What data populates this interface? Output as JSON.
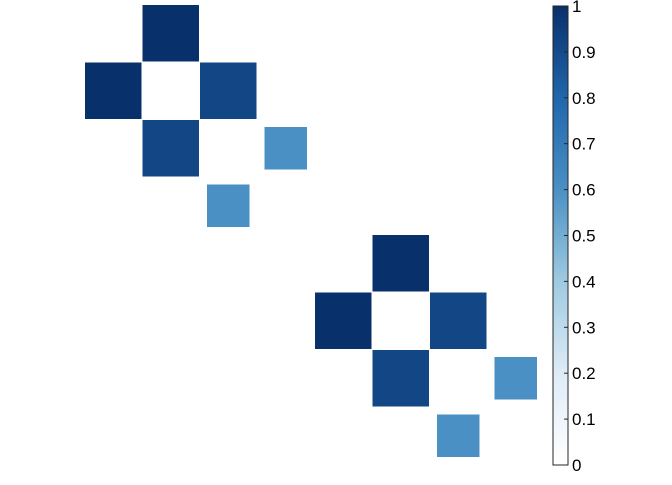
{
  "chart_data": {
    "type": "heatmap",
    "title": "",
    "xlabel": "",
    "ylabel": "",
    "grid": false,
    "cells": [
      {
        "row": 1,
        "col": 3,
        "value": 1.0
      },
      {
        "row": 2,
        "col": 2,
        "value": 1.0
      },
      {
        "row": 2,
        "col": 4,
        "value": 0.92
      },
      {
        "row": 3,
        "col": 3,
        "value": 0.92
      },
      {
        "row": 3,
        "col": 5,
        "value": 0.6
      },
      {
        "row": 4,
        "col": 4,
        "value": 0.6
      },
      {
        "row": 5,
        "col": 7,
        "value": 1.0
      },
      {
        "row": 6,
        "col": 6,
        "value": 1.0
      },
      {
        "row": 6,
        "col": 8,
        "value": 0.92
      },
      {
        "row": 7,
        "col": 7,
        "value": 0.92
      },
      {
        "row": 7,
        "col": 9,
        "value": 0.6
      },
      {
        "row": 8,
        "col": 8,
        "value": 0.6
      }
    ],
    "colorbar": {
      "range": [
        0,
        1
      ],
      "ticks": [
        "0",
        "0.1",
        "0.2",
        "0.3",
        "0.4",
        "0.5",
        "0.6",
        "0.7",
        "0.8",
        "0.9",
        "1"
      ],
      "placement": "right",
      "colormap": [
        "#ffffff",
        "#deebf7",
        "#9ecae1",
        "#4a90c4",
        "#2166ac",
        "#08306b"
      ]
    }
  }
}
